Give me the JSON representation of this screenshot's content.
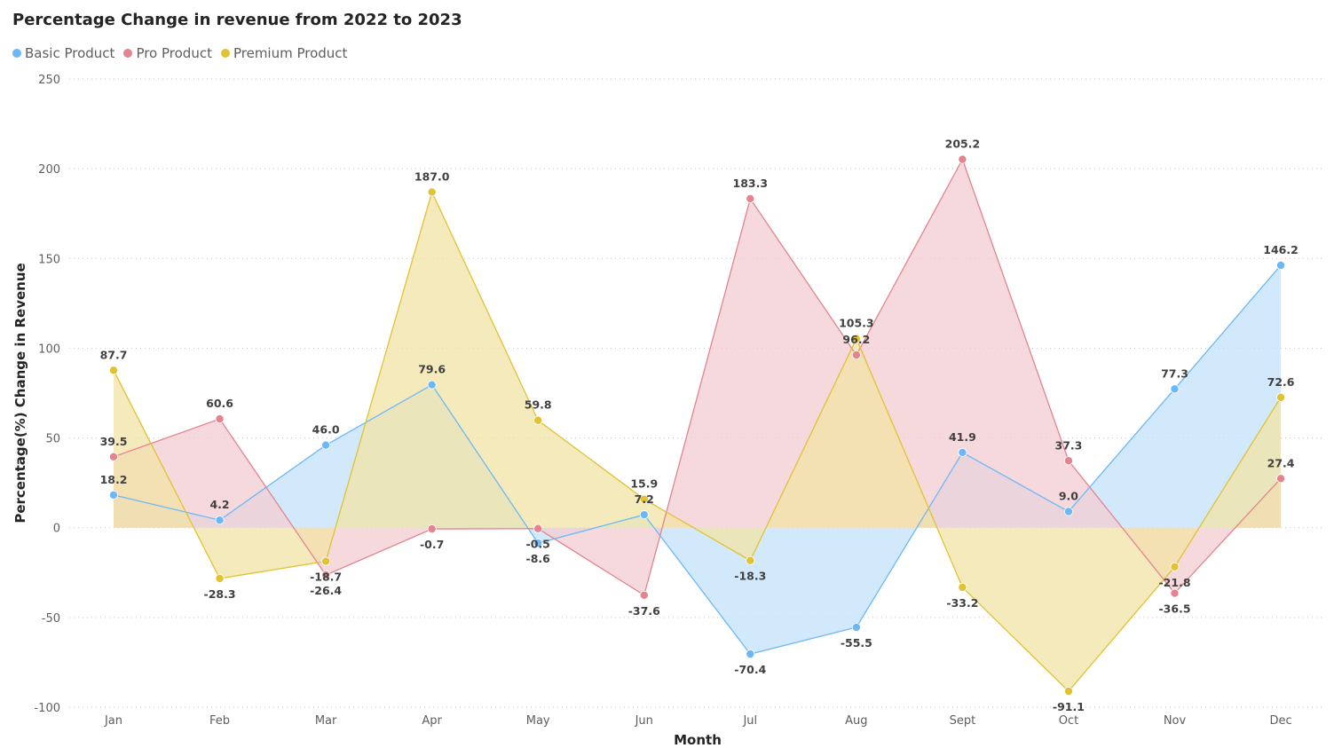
{
  "chart_data": {
    "type": "area",
    "title": "Percentage Change in revenue from 2022 to 2023",
    "xlabel": "Month",
    "ylabel": "Percentage(%) Change in Revenue",
    "categories": [
      "Jan",
      "Feb",
      "Mar",
      "Apr",
      "May",
      "Jun",
      "Jul",
      "Aug",
      "Sept",
      "Oct",
      "Nov",
      "Dec"
    ],
    "ylim": [
      -100,
      250
    ],
    "yticks": [
      -100,
      -50,
      0,
      50,
      100,
      150,
      200,
      250
    ],
    "grid": "horizontal dotted",
    "legend_position": "top-left",
    "series": [
      {
        "name": "Basic Product",
        "color": "#6CB8F6",
        "fill": "#C3E1FB",
        "values": [
          18.2,
          4.2,
          46.0,
          79.6,
          -8.6,
          7.2,
          -70.4,
          -55.5,
          41.9,
          9.0,
          77.3,
          146.2
        ]
      },
      {
        "name": "Pro Product",
        "color": "#E3848E",
        "fill": "#F3CCD2",
        "values": [
          39.5,
          60.6,
          -26.4,
          -0.7,
          -0.5,
          -37.6,
          183.3,
          96.2,
          205.2,
          37.3,
          -36.5,
          27.4
        ]
      },
      {
        "name": "Premium Product",
        "color": "#E1C233",
        "fill": "#F2E3A6",
        "values": [
          87.7,
          -28.3,
          -18.7,
          187.0,
          59.8,
          15.9,
          -18.3,
          105.3,
          -33.2,
          -91.1,
          -21.8,
          72.6
        ]
      }
    ]
  }
}
